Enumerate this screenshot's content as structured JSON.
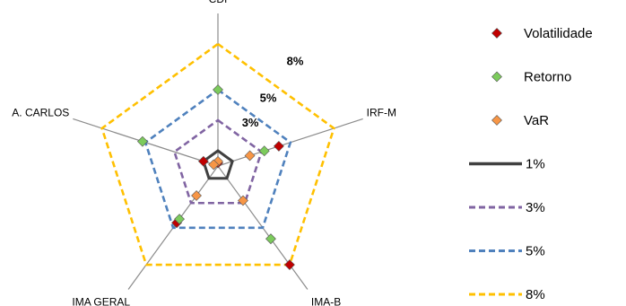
{
  "chart_data": {
    "type": "radar",
    "title": "",
    "categories": [
      "CDI",
      "IRF-M",
      "IMA-B",
      "IMA GERAL",
      "A. CARLOS"
    ],
    "radial_range": [
      0,
      10
    ],
    "reference_rings": [
      {
        "name": "1%",
        "value": 1,
        "color": "#404040",
        "dash": "solid"
      },
      {
        "name": "3%",
        "value": 3,
        "color": "#8064A2",
        "dash": "dashed"
      },
      {
        "name": "5%",
        "value": 5,
        "color": "#4F81BD",
        "dash": "dashed"
      },
      {
        "name": "8%",
        "value": 8,
        "color": "#FFC000",
        "dash": "dashed"
      }
    ],
    "ring_labels": [
      {
        "text": "3%",
        "value": 3
      },
      {
        "text": "5%",
        "value": 5
      },
      {
        "text": "8%",
        "value": 8
      }
    ],
    "series": [
      {
        "name": "Volatilidade",
        "color": "#C00000",
        "values": [
          0.2,
          4.2,
          8.0,
          4.6,
          1.0
        ]
      },
      {
        "name": "Retorno",
        "color": "#7CCB5C",
        "values": [
          5.0,
          3.2,
          5.9,
          4.3,
          5.2
        ]
      },
      {
        "name": "VaR",
        "color": "#F79646",
        "values": [
          0.3,
          2.2,
          2.8,
          2.4,
          0.3
        ]
      }
    ],
    "legend_position": "right"
  }
}
